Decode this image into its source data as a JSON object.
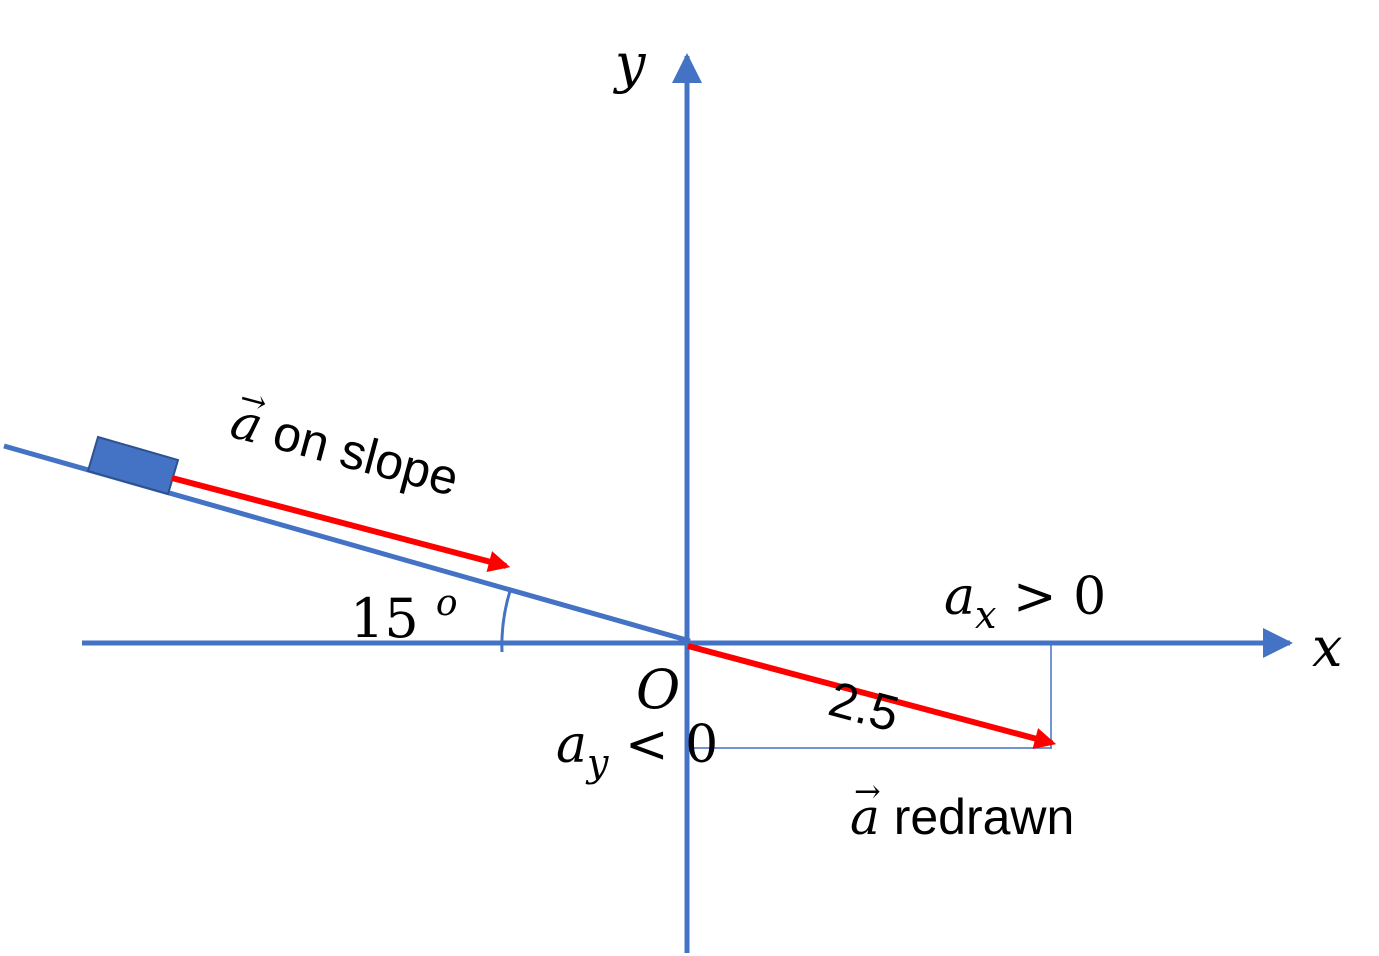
{
  "colors": {
    "axis": "#4472C4",
    "vector": "#FF0000",
    "block": "#4472C4",
    "block_border": "#2F528F",
    "text": "#000000"
  },
  "labels": {
    "y_axis": "y",
    "x_axis": "x",
    "origin": "O",
    "angle_value": "15",
    "angle_superscript": "o",
    "vec_symbol": "a",
    "vec_arrow": "→",
    "on_slope_text": " on slope",
    "redrawn_text": " redrawn",
    "magnitude": "2.5",
    "ax_symbol": "a",
    "ax_subscript": "x",
    "ax_relation": " > 0",
    "ay_symbol": "a",
    "ay_subscript": "y",
    "ay_relation": " < 0"
  }
}
